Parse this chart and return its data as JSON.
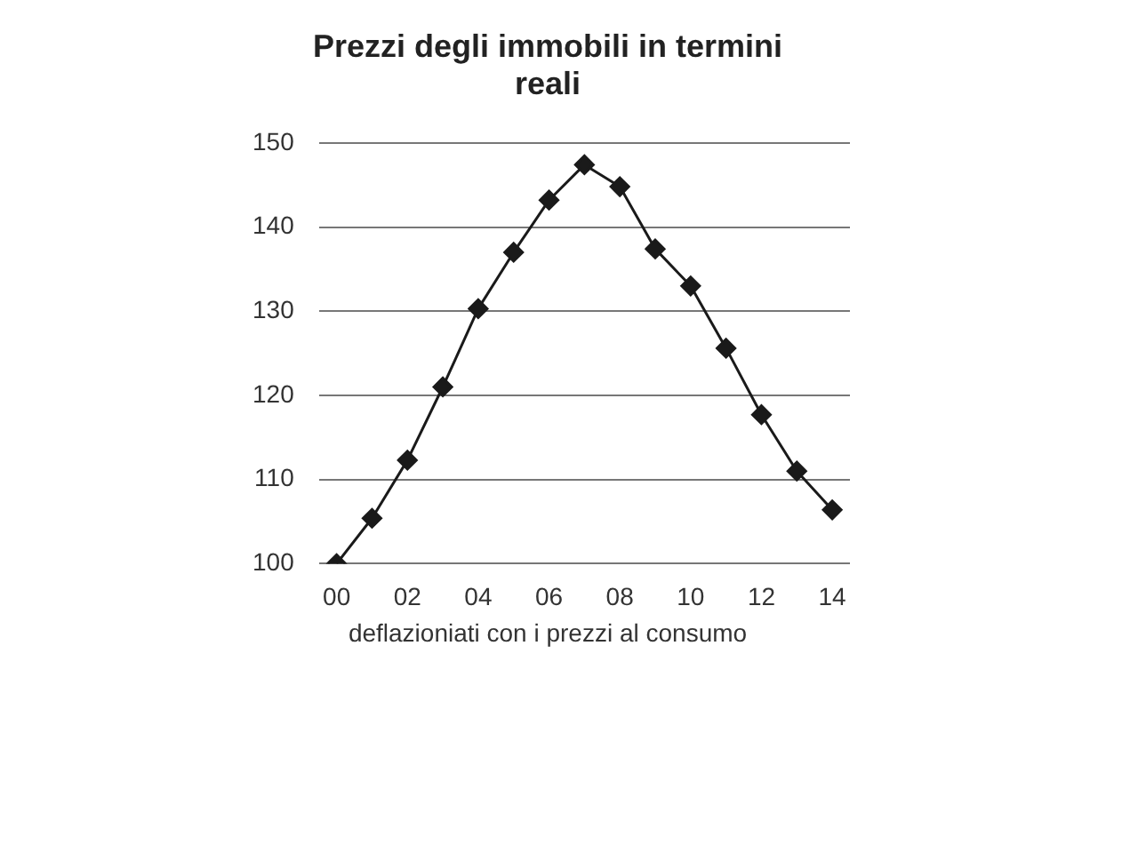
{
  "chart_data": {
    "type": "line",
    "title": "Prezzi degli immobili in termini reali",
    "categories": [
      "00",
      null,
      "02",
      null,
      "04",
      null,
      "06",
      null,
      "08",
      null,
      "10",
      null,
      "12",
      null,
      "14"
    ],
    "series": [
      {
        "color": "#1a1a1a",
        "values": [
          100,
          105.4,
          112.3,
          121,
          130.3,
          137,
          143.2,
          147.4,
          144.8,
          137.4,
          133,
          125.6,
          117.7,
          111,
          106.4
        ]
      }
    ],
    "ylim": [
      100,
      150
    ],
    "yticks": [
      100,
      110,
      120,
      130,
      140,
      150
    ],
    "grid": "y",
    "legend": false,
    "marker": "diamond",
    "line_style": "solid",
    "annotations": [
      "deflazioniati con i prezzi al consumo"
    ]
  }
}
